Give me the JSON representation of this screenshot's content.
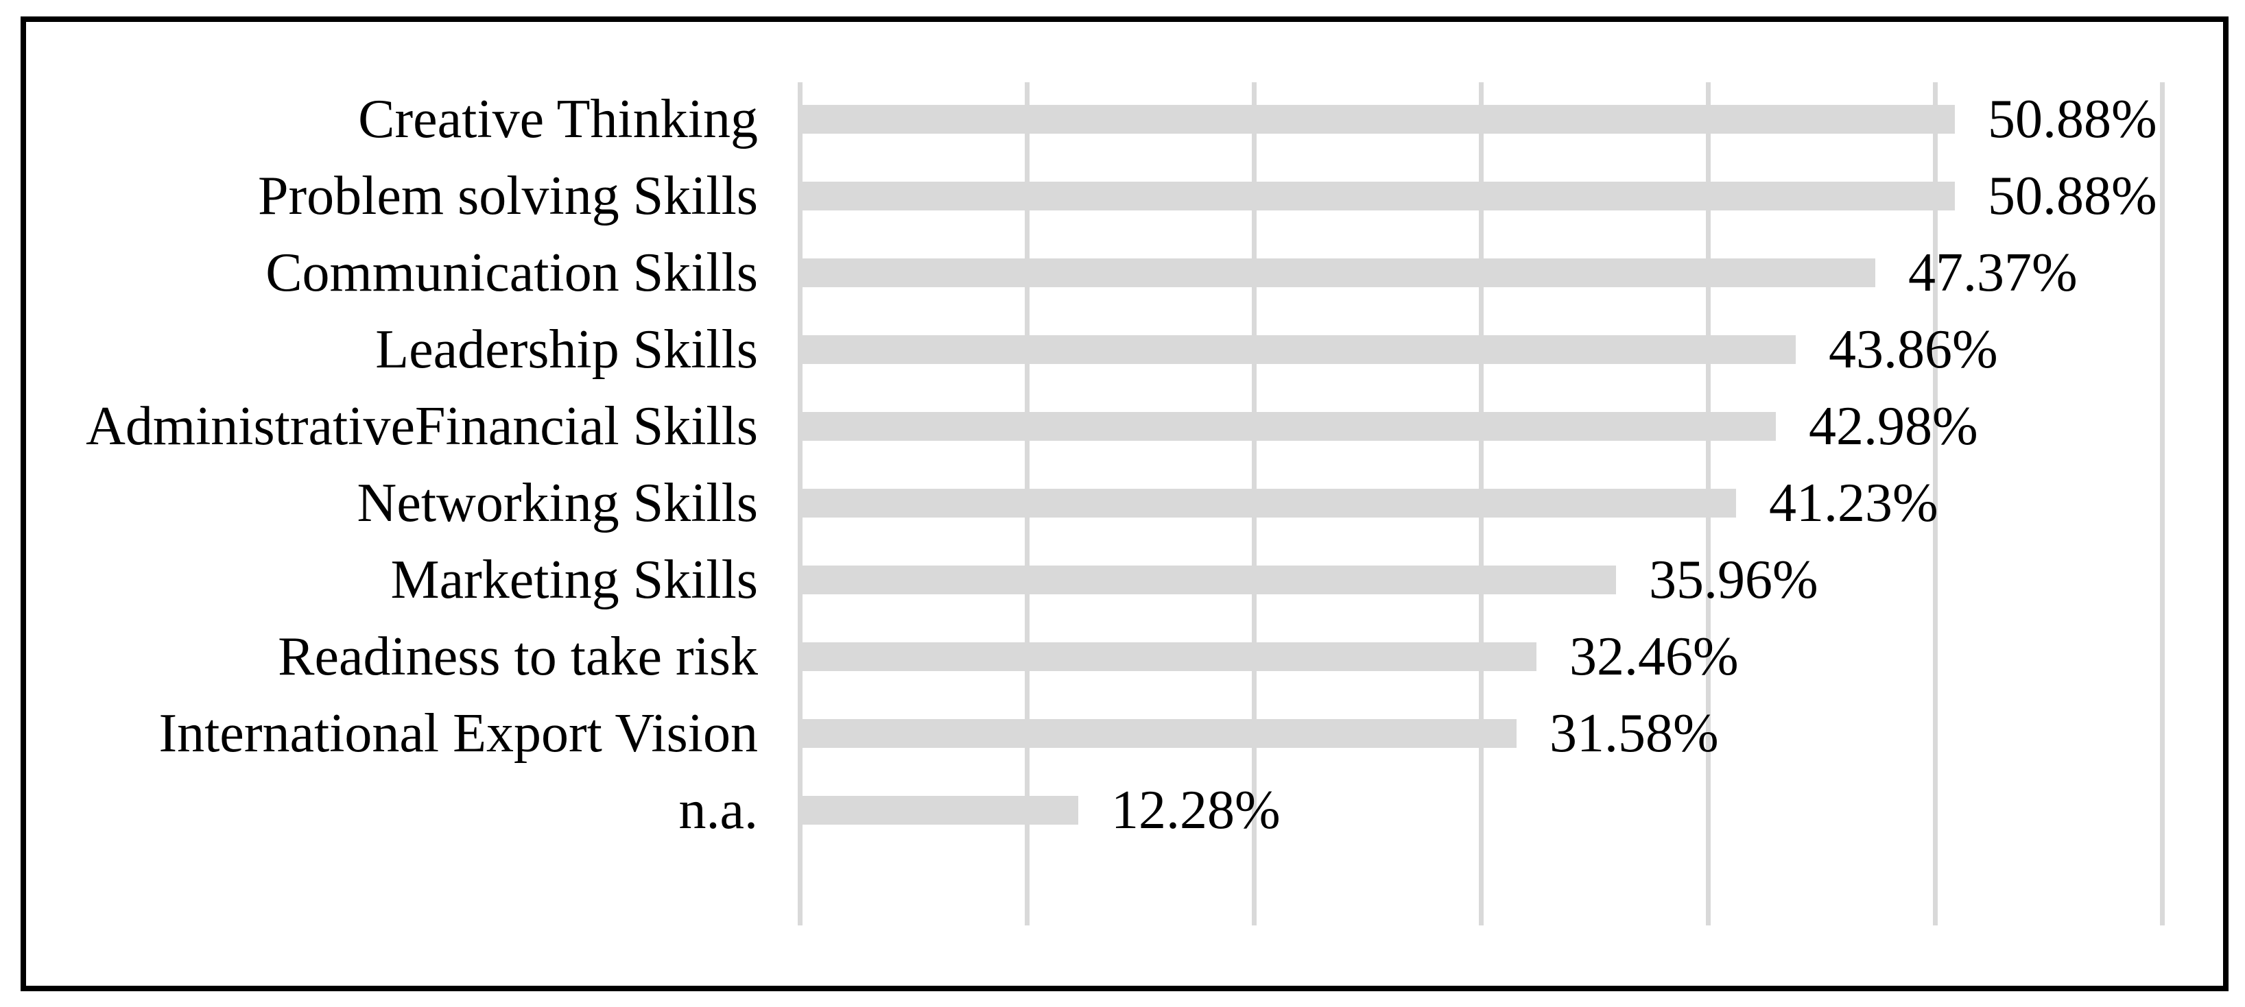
{
  "figure": {
    "background_color": "#ffffff",
    "frame_color": "#000000",
    "text_color": "#000000"
  },
  "chart_data": {
    "type": "bar",
    "orientation": "horizontal",
    "title": "",
    "xlabel": "",
    "ylabel": "",
    "categories": [
      "Creative Thinking",
      "Problem solving Skills",
      "Communication Skills",
      "Leadership Skills",
      "AdministrativeFinancial Skills",
      "Networking Skills",
      "Marketing Skills",
      "Readiness to take risk",
      "International Export Vision",
      "n.a."
    ],
    "values": [
      50.88,
      50.88,
      47.37,
      43.86,
      42.98,
      41.23,
      35.96,
      32.46,
      31.58,
      12.28
    ],
    "value_labels": [
      "50.88%",
      "50.88%",
      "47.37%",
      "43.86%",
      "42.98%",
      "41.23%",
      "35.96%",
      "32.46%",
      "31.58%",
      "12.28%"
    ],
    "xlim": [
      0,
      60
    ],
    "gridline_interval": 10,
    "grid": "vertical-gridlines-only",
    "axis_tick_labels_shown": false,
    "legend": "none",
    "bar_color": "#d9d9d9",
    "gridline_color": "#d9d9d9"
  }
}
